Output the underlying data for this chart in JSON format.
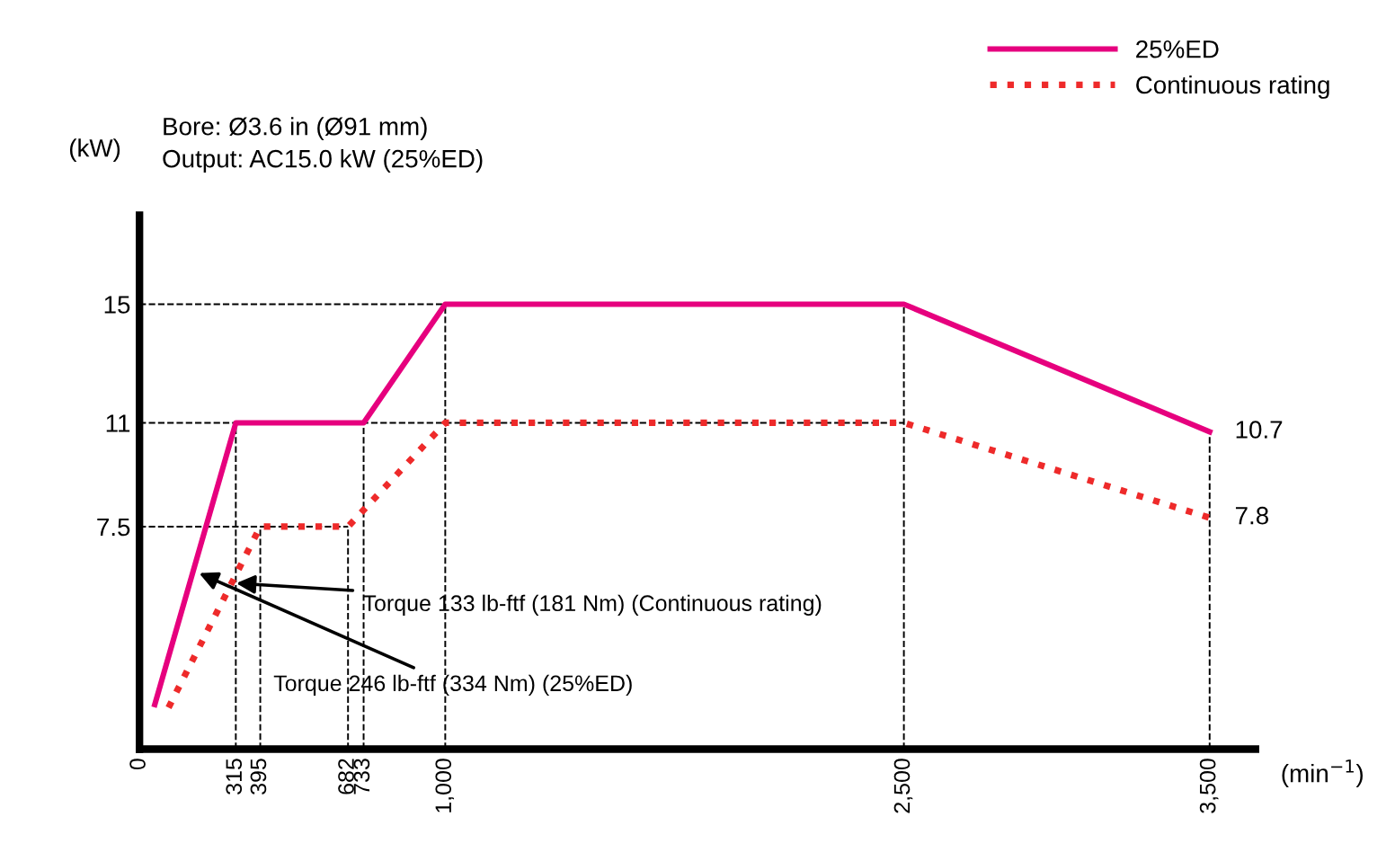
{
  "chart_data": {
    "type": "line",
    "xlabel": "(min$^{−1}$)",
    "ylabel": "(kW)",
    "annotations": [
      "Bore: Ø3.6 in (Ø91 mm)",
      "Output: AC15.0 kW (25%ED)",
      {
        "text": "Torque 246 lb-ftf (334 Nm) (25%ED)",
        "x": 180,
        "y": 6
      },
      {
        "text": "Torque 133 lb-ftf (181 Nm) (Continuous rating)",
        "x": 300,
        "y": 5.6
      }
    ],
    "series": [
      {
        "name": "25%ED",
        "color": "#e6007e",
        "line_style": "solid",
        "x": [
          50,
          315,
          733,
          1000,
          2500,
          3500
        ],
        "values": [
          1.5,
          11,
          11,
          15,
          15,
          10.7
        ],
        "value_labels": [
          null,
          null,
          null,
          null,
          null,
          "10.7"
        ]
      },
      {
        "name": "Continuous rating",
        "color": "#ee2a2a",
        "line_style": "dotted",
        "x": [
          95,
          395,
          682,
          1000,
          2500,
          3500
        ],
        "values": [
          1.4,
          7.5,
          7.5,
          11,
          11,
          7.8
        ],
        "value_labels": [
          null,
          null,
          null,
          null,
          null,
          "7.8"
        ]
      }
    ],
    "xlim": [
      0,
      3650
    ],
    "ylim": [
      0,
      18
    ],
    "xticks": [
      0,
      315,
      395,
      682,
      733,
      {
        "value": 1000,
        "label": "1,000"
      },
      {
        "value": 2500,
        "label": "2,500"
      },
      {
        "value": 3500,
        "label": "3,500"
      }
    ],
    "yticks": [
      7.5,
      11,
      15
    ],
    "ref_lines": [
      {
        "axis": "y",
        "value": 15,
        "line_style": "dashed"
      },
      {
        "axis": "y",
        "value": 11,
        "line_style": "dashed"
      },
      {
        "axis": "y",
        "value": 7.5,
        "line_style": "dashed"
      },
      {
        "axis": "x",
        "value": 315,
        "line_style": "dashed"
      },
      {
        "axis": "x",
        "value": 395,
        "line_style": "dashed"
      },
      {
        "axis": "x",
        "value": 682,
        "line_style": "dashed"
      },
      {
        "axis": "x",
        "value": 733,
        "line_style": "dashed"
      },
      {
        "axis": "x",
        "value": 1000,
        "line_style": "dashed"
      },
      {
        "axis": "x",
        "value": 2500,
        "line_style": "dashed"
      },
      {
        "axis": "x",
        "value": 3500,
        "line_style": "dashed"
      }
    ],
    "legend": "top right",
    "marker": "none"
  }
}
